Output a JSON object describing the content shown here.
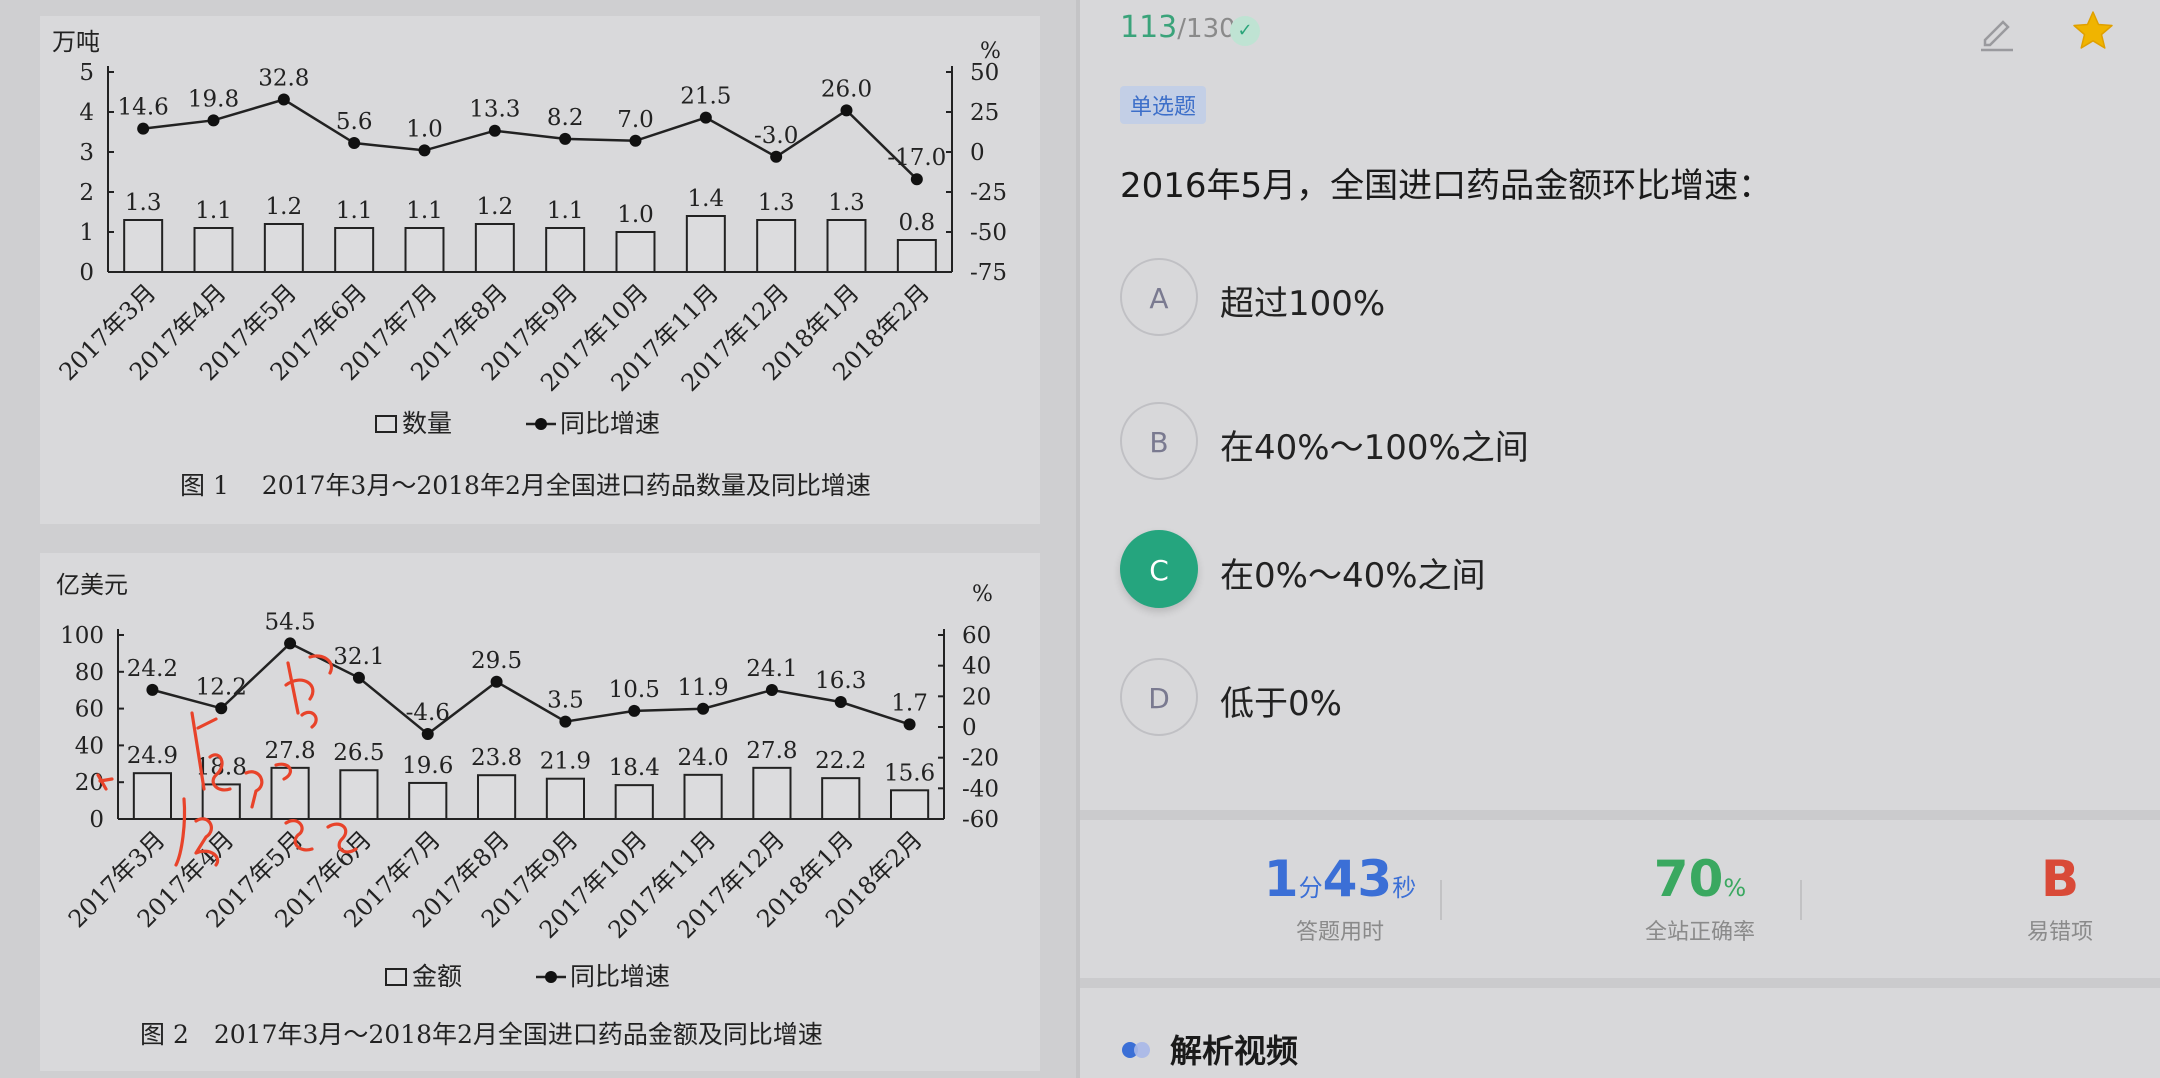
{
  "chart_data": [
    {
      "type": "bar",
      "categories": [
        "2017年3月",
        "2017年4月",
        "2017年5月",
        "2017年6月",
        "2017年7月",
        "2017年8月",
        "2017年9月",
        "2017年10月",
        "2017年11月",
        "2017年12月",
        "2018年1月",
        "2018年2月"
      ],
      "y_left_unit": "万吨",
      "y_right_unit": "%",
      "y_left_ticks": [
        "0",
        "1",
        "2",
        "3",
        "4",
        "5"
      ],
      "y_right_ticks": [
        "-75",
        "-50",
        "-25",
        "0",
        "25",
        "50"
      ],
      "ylim_left": [
        0,
        5
      ],
      "ylim_right": [
        -75,
        50
      ],
      "series": [
        {
          "name": "数量",
          "type": "bar",
          "axis": "left",
          "values": [
            1.3,
            1.1,
            1.2,
            1.1,
            1.1,
            1.2,
            1.1,
            1.0,
            1.4,
            1.3,
            1.3,
            0.8
          ]
        },
        {
          "name": "同比增速",
          "type": "line",
          "axis": "right",
          "values": [
            14.6,
            19.8,
            32.8,
            5.6,
            1.0,
            13.3,
            8.2,
            7.0,
            21.5,
            -3.0,
            26.0,
            -17.0
          ]
        }
      ],
      "bar_labels": [
        "1.3",
        "1.1",
        "1.2",
        "1.1",
        "1.1",
        "1.2",
        "1.1",
        "1.0",
        "1.4",
        "1.3",
        "1.3",
        "0.8"
      ],
      "line_labels": [
        "14.6",
        "19.8",
        "32.8",
        "5.6",
        "1.0",
        "13.3",
        "8.2",
        "7.0",
        "21.5",
        "-3.0",
        "26.0",
        "-17.0"
      ],
      "caption": "图 1　 2017年3月～2018年2月全国进口药品数量及同比增速"
    },
    {
      "type": "bar",
      "categories": [
        "2017年3月",
        "2017年4月",
        "2017年5月",
        "2017年6月",
        "2017年7月",
        "2017年8月",
        "2017年9月",
        "2017年10月",
        "2017年11月",
        "2017年12月",
        "2018年1月",
        "2018年2月"
      ],
      "y_left_unit": "亿美元",
      "y_right_unit": "%",
      "y_left_ticks": [
        "0",
        "20",
        "40",
        "60",
        "80",
        "100"
      ],
      "y_right_ticks": [
        "-60",
        "-40",
        "-20",
        "0",
        "20",
        "40",
        "60"
      ],
      "ylim_left": [
        0,
        100
      ],
      "ylim_right": [
        -60,
        60
      ],
      "series": [
        {
          "name": "金额",
          "type": "bar",
          "axis": "left",
          "values": [
            24.9,
            18.8,
            27.8,
            26.5,
            19.6,
            23.8,
            21.9,
            18.4,
            24.0,
            27.8,
            22.2,
            15.6
          ]
        },
        {
          "name": "同比增速",
          "type": "line",
          "axis": "right",
          "values": [
            24.2,
            12.2,
            54.5,
            32.1,
            -4.6,
            29.5,
            3.5,
            10.5,
            11.9,
            24.1,
            16.3,
            1.7
          ]
        }
      ],
      "bar_labels": [
        "24.9",
        "18.8",
        "27.8",
        "26.5",
        "19.6",
        "23.8",
        "21.9",
        "18.4",
        "24.0",
        "27.8",
        "22.2",
        "15.6"
      ],
      "line_labels": [
        "24.2",
        "12.2",
        "54.5",
        "32.1",
        "-4.6",
        "29.5",
        "3.5",
        "10.5",
        "11.9",
        "24.1",
        "16.3",
        "1.7"
      ],
      "caption": "图 2　2017年3月～2018年2月全国进口药品金额及同比增速"
    }
  ],
  "handwriting": {
    "color": "#e8432a"
  },
  "question": {
    "progress_current": "113",
    "progress_total": "/130",
    "type_tag": "单选题",
    "stem": "2016年5月，全国进口药品金额环比增速：",
    "options": [
      {
        "letter": "A",
        "text": "超过100%",
        "selected": false
      },
      {
        "letter": "B",
        "text": "在40%～100%之间",
        "selected": false
      },
      {
        "letter": "C",
        "text": "在0%～40%之间",
        "selected": true
      },
      {
        "letter": "D",
        "text": "低于0%",
        "selected": false
      }
    ],
    "selected_color": "#25a57e"
  },
  "stats": {
    "time_min": "1",
    "time_min_unit": "分",
    "time_sec": "43",
    "time_sec_unit": "秒",
    "time_label": "答题用时",
    "accuracy": "70",
    "accuracy_unit": "%",
    "accuracy_label": "全站正确率",
    "common_wrong": "B",
    "common_wrong_label": "易错项"
  },
  "video_section": {
    "title": "解析视频"
  },
  "colors": {
    "accent_green": "#25a57e",
    "accent_blue": "#3b6fd6",
    "error_red": "#d94a38",
    "star": "#f0b400"
  }
}
